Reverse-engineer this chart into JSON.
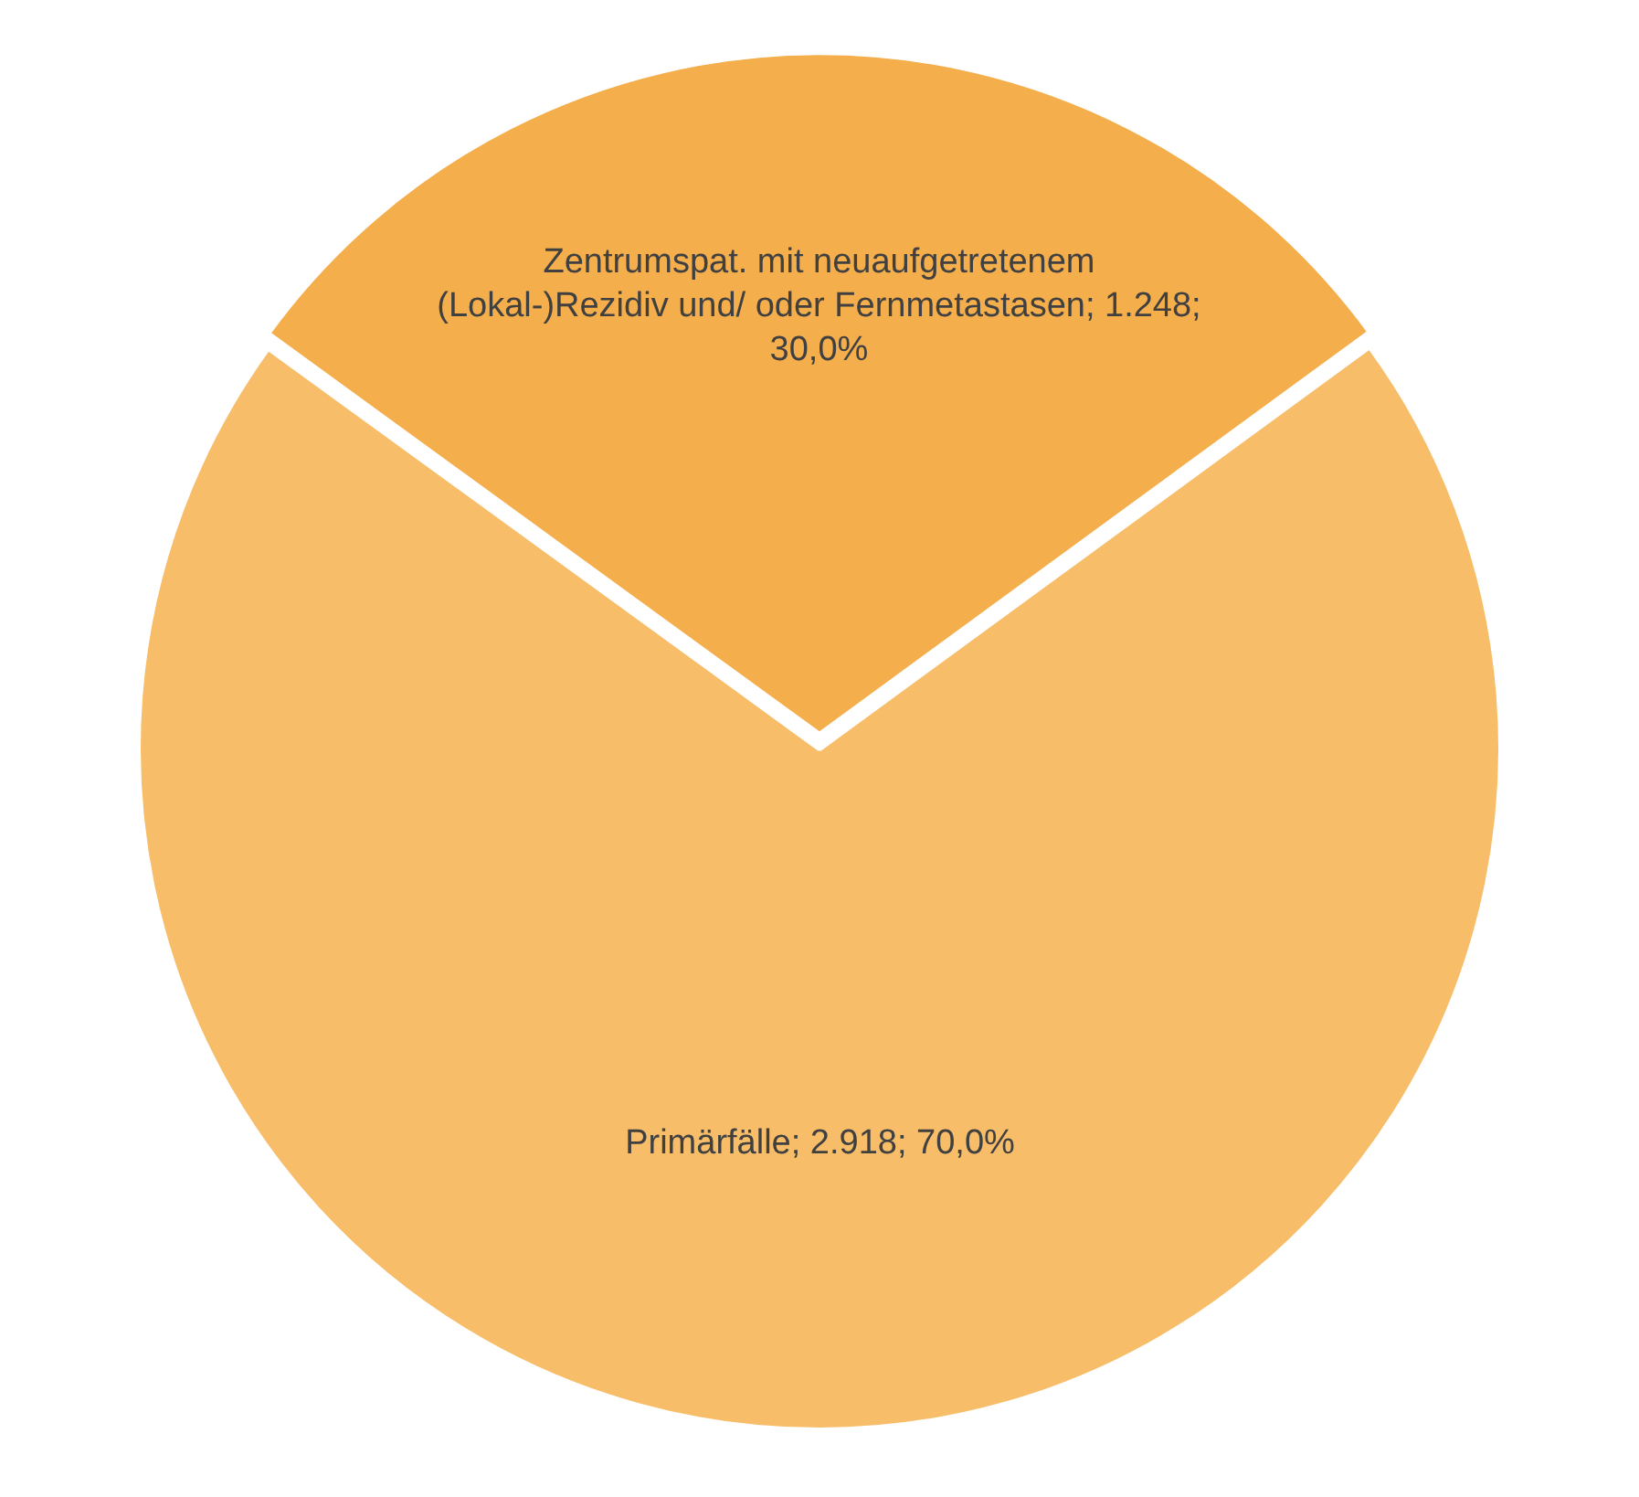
{
  "chart_data": {
    "type": "pie",
    "categories": [
      "Zentrumspat. mit neuaufgetretenem (Lokal-)Rezidiv und/ oder Fernmetastasen",
      "Primärfälle"
    ],
    "values": [
      1248,
      2918
    ],
    "value_labels": [
      "1.248; 30,0%",
      "2.918; 70,0%"
    ],
    "colors": [
      "#f4ae4c",
      "#f7bd69"
    ],
    "legend": false
  }
}
